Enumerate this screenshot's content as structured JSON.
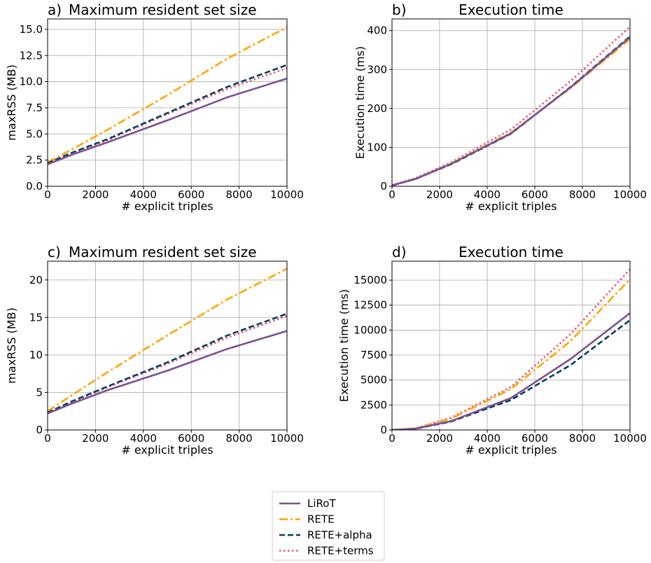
{
  "chart_data": [
    {
      "type": "line",
      "panel": "a)",
      "title": "Maximum resident set size",
      "xlabel": "# explicit triples",
      "ylabel": "maxRSS (MB)",
      "xlim": [
        0,
        10000
      ],
      "ylim": [
        0,
        16
      ],
      "xticks": [
        0,
        2000,
        4000,
        6000,
        8000,
        10000
      ],
      "yticks": [
        0.0,
        2.5,
        5.0,
        7.5,
        10.0,
        12.5,
        15.0
      ],
      "ytick_labels": [
        "0.0",
        "2.5",
        "5.0",
        "7.5",
        "10.0",
        "12.5",
        "15.0"
      ],
      "grid": true,
      "x": [
        0,
        1000,
        2500,
        5000,
        7500,
        10000
      ],
      "series": [
        {
          "name": "LiRoT",
          "values": [
            2.1,
            3.0,
            4.2,
            6.3,
            8.5,
            10.3
          ]
        },
        {
          "name": "RETE",
          "values": [
            2.3,
            3.5,
            5.4,
            8.7,
            12.2,
            15.2
          ]
        },
        {
          "name": "RETE+alpha",
          "values": [
            2.2,
            3.2,
            4.5,
            7.0,
            9.5,
            11.6
          ]
        },
        {
          "name": "RETE+terms",
          "values": [
            2.2,
            3.1,
            4.4,
            6.9,
            9.3,
            11.3
          ]
        }
      ]
    },
    {
      "type": "line",
      "panel": "b)",
      "title": "Execution time",
      "xlabel": "# explicit triples",
      "ylabel": "Execution time (ms)",
      "xlim": [
        0,
        10000
      ],
      "ylim": [
        0,
        430
      ],
      "xticks": [
        0,
        2000,
        4000,
        6000,
        8000,
        10000
      ],
      "yticks": [
        0,
        100,
        200,
        300,
        400
      ],
      "ytick_labels": [
        "0",
        "100",
        "200",
        "300",
        "400"
      ],
      "grid": true,
      "x": [
        0,
        1000,
        2500,
        5000,
        7500,
        10000
      ],
      "series": [
        {
          "name": "LiRoT",
          "values": [
            2,
            19,
            58,
            136,
            254,
            383
          ]
        },
        {
          "name": "RETE",
          "values": [
            2,
            20,
            59,
            138,
            252,
            378
          ]
        },
        {
          "name": "RETE+alpha",
          "values": [
            2,
            19,
            57,
            135,
            255,
            385
          ]
        },
        {
          "name": "RETE+terms",
          "values": [
            3,
            21,
            62,
            146,
            270,
            410
          ]
        }
      ]
    },
    {
      "type": "line",
      "panel": "c)",
      "title": "Maximum resident set size",
      "xlabel": "# explicit triples",
      "ylabel": "maxRSS (MB)",
      "xlim": [
        0,
        10000
      ],
      "ylim": [
        0,
        22.5
      ],
      "xticks": [
        0,
        2000,
        4000,
        6000,
        8000,
        10000
      ],
      "yticks": [
        0,
        5,
        10,
        15,
        20
      ],
      "ytick_labels": [
        "0",
        "5",
        "10",
        "15",
        "20"
      ],
      "grid": true,
      "x": [
        0,
        1000,
        2500,
        5000,
        7500,
        10000
      ],
      "series": [
        {
          "name": "LiRoT",
          "values": [
            2.2,
            3.5,
            5.3,
            7.9,
            10.8,
            13.2
          ]
        },
        {
          "name": "RETE",
          "values": [
            2.5,
            4.6,
            7.7,
            12.6,
            17.4,
            21.5
          ]
        },
        {
          "name": "RETE+alpha",
          "values": [
            2.3,
            3.8,
            5.8,
            9.0,
            12.6,
            15.5
          ]
        },
        {
          "name": "RETE+terms",
          "values": [
            2.3,
            3.7,
            5.7,
            8.8,
            12.3,
            15.2
          ]
        }
      ]
    },
    {
      "type": "line",
      "panel": "d)",
      "title": "Execution time",
      "xlabel": "# explicit triples",
      "ylabel": "Execution time (ms)",
      "xlim": [
        0,
        10000
      ],
      "ylim": [
        0,
        16900
      ],
      "xticks": [
        0,
        2000,
        4000,
        6000,
        8000,
        10000
      ],
      "yticks": [
        0,
        2500,
        5000,
        7500,
        10000,
        12500,
        15000
      ],
      "ytick_labels": [
        "0",
        "2500",
        "5000",
        "7500",
        "10000",
        "12500",
        "15000"
      ],
      "grid": true,
      "x": [
        0,
        1000,
        2500,
        5000,
        7500,
        10000
      ],
      "series": [
        {
          "name": "LiRoT",
          "values": [
            0,
            130,
            900,
            3200,
            7100,
            11700
          ]
        },
        {
          "name": "RETE",
          "values": [
            0,
            160,
            1150,
            4100,
            8900,
            15100
          ]
        },
        {
          "name": "RETE+alpha",
          "values": [
            0,
            120,
            850,
            3000,
            6500,
            11000
          ]
        },
        {
          "name": "RETE+terms",
          "values": [
            0,
            170,
            1250,
            4300,
            9600,
            16100
          ]
        }
      ]
    }
  ],
  "legend": {
    "placement": "bottom-center",
    "entries": [
      "LiRoT",
      "RETE",
      "RETE+alpha",
      "RETE+terms"
    ]
  },
  "colors": {
    "LiRoT": "#7a5195",
    "RETE": "#ffa600",
    "RETE+alpha": "#003f5c",
    "RETE+terms": "#ef5675"
  }
}
